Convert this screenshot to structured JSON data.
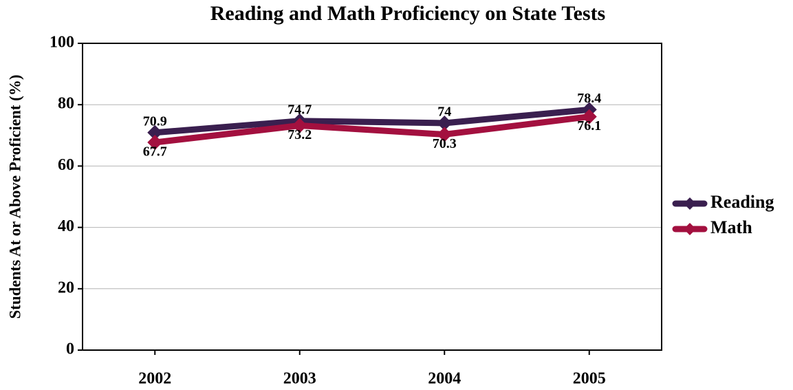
{
  "chart_data": {
    "type": "line",
    "title": "Reading and Math Proficiency on State Tests",
    "y_label": "Students At or Above Proficient (%)",
    "categories": [
      "2002",
      "2003",
      "2004",
      "2005"
    ],
    "series": [
      {
        "name": "Reading",
        "color": "#3a1f4f",
        "values": [
          70.9,
          74.7,
          74,
          78.4
        ]
      },
      {
        "name": "Math",
        "color": "#a3103f",
        "values": [
          67.7,
          73.2,
          70.3,
          76.1
        ]
      }
    ],
    "ylim": [
      0,
      100
    ],
    "yticks": [
      0,
      20,
      40,
      60,
      80,
      100
    ],
    "grid": true,
    "legend": "right"
  }
}
